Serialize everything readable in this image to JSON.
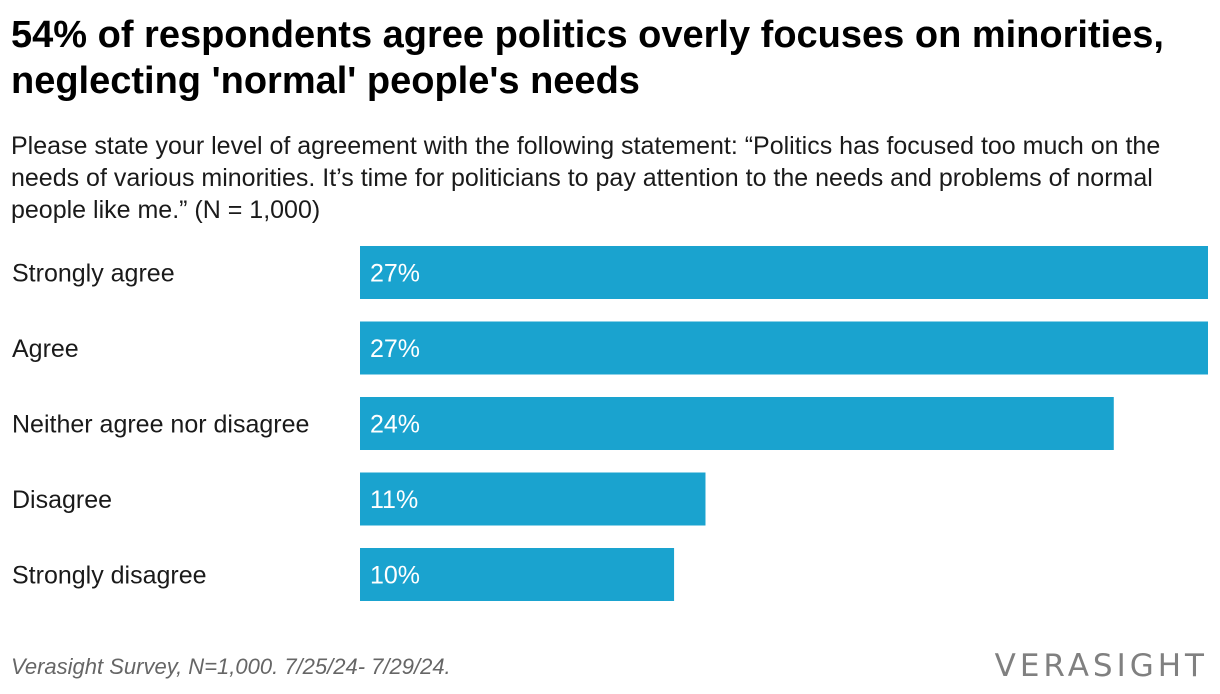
{
  "title": "54% of respondents agree politics overly focuses on minorities, neglecting 'normal' people's needs",
  "subtitle": "Please state your level of agreement with the following statement: “Politics has focused too much on the needs of various minorities. It’s time for politicians to pay attention to the needs and problems of normal people like me.” (N = 1,000)",
  "chart_data": {
    "type": "bar",
    "orientation": "horizontal",
    "categories": [
      "Strongly agree",
      "Agree",
      "Neither agree nor disagree",
      "Disagree",
      "Strongly disagree"
    ],
    "values": [
      27,
      27,
      24,
      11,
      10
    ],
    "data_labels": [
      "27%",
      "27%",
      "24%",
      "11%",
      "10%"
    ],
    "unit": "%",
    "xlim": [
      0,
      27
    ],
    "grid": false,
    "legend": "none",
    "bar_color": "#1aa3cf",
    "label_color": "#ffffff"
  },
  "footer": {
    "source": "Verasight Survey, N=1,000. 7/25/24- 7/29/24.",
    "logo_text": "VERASIGHT"
  }
}
